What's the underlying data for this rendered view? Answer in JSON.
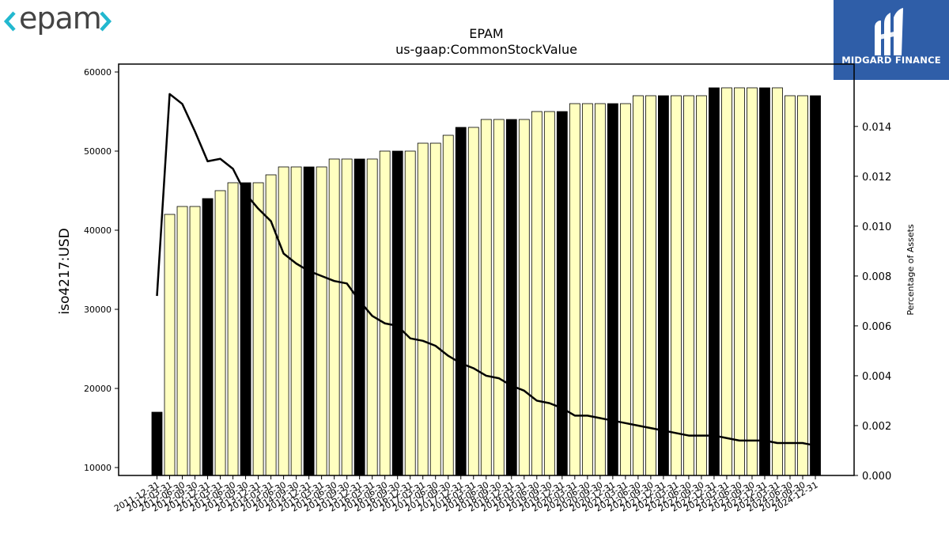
{
  "brand": {
    "name": "epam",
    "sponsor": "MIDGARD FINANCE"
  },
  "chart_data": {
    "type": "bar",
    "title": "EPAM",
    "subtitle": "us-gaap:CommonStockValue",
    "ylabel": "iso4217:USD",
    "y2label": "Percentage of Assets",
    "ylim": [
      9000,
      61000
    ],
    "y2lim": [
      0,
      0.0165
    ],
    "yticks": [
      10000,
      20000,
      30000,
      40000,
      50000,
      60000
    ],
    "y2ticks": [
      0.0,
      0.002,
      0.004,
      0.006,
      0.008,
      0.01,
      0.012,
      0.014
    ],
    "y2tick_labels": [
      "0.000",
      "0.002",
      "0.004",
      "0.006",
      "0.008",
      "0.010",
      "0.012",
      "0.014"
    ],
    "categories": [
      "2011-12-31",
      "2012-03-31",
      "2012-06-30",
      "2012-09-30",
      "2012-12-31",
      "2013-03-31",
      "2013-06-30",
      "2013-09-30",
      "2013-12-31",
      "2014-03-31",
      "2014-06-30",
      "2014-09-30",
      "2014-12-31",
      "2015-03-31",
      "2015-06-30",
      "2015-09-30",
      "2015-12-31",
      "2016-03-31",
      "2016-06-30",
      "2016-09-30",
      "2016-12-31",
      "2017-03-31",
      "2017-06-30",
      "2017-09-30",
      "2017-12-31",
      "2018-03-31",
      "2018-06-30",
      "2018-09-30",
      "2018-12-31",
      "2019-03-31",
      "2019-06-30",
      "2019-09-30",
      "2019-12-31",
      "2020-03-31",
      "2020-06-30",
      "2020-09-30",
      "2020-12-31",
      "2021-03-31",
      "2021-06-30",
      "2021-09-30",
      "2021-12-31",
      "2022-03-31",
      "2022-06-30",
      "2022-09-30",
      "2022-12-31",
      "2023-03-31",
      "2023-06-30",
      "2023-09-30",
      "2023-12-31",
      "2024-03-31",
      "2024-06-30",
      "2024-09-30",
      "2024-12-31"
    ],
    "x_tick_labels": [
      "2011-12-31",
      "2012-03-31",
      "2012-06-30",
      "2012-09-30",
      "2012-12-31",
      "2013-03-31",
      "2013-06-30",
      "2013-09-30",
      "2013-12-31",
      "2014-03-31",
      "2014-06-30",
      "2014-09-30",
      "2014-12-31",
      "2015-03-31",
      "2015-06-30",
      "2015-09-30",
      "2015-12-31",
      "2016-03-31",
      "2016-06-30",
      "2016-09-30",
      "2016-12-31",
      "2017-03-31",
      "2017-06-30",
      "2017-09-30",
      "2017-12-31",
      "2018-03-31",
      "2018-06-30",
      "2018-09-30",
      "2018-12-31",
      "2019-03-31",
      "2019-06-30",
      "2019-09-30",
      "2019-12-31",
      "2020-03-31",
      "2020-06-30",
      "2020-09-30",
      "2020-12-31",
      "2021-03-31",
      "2021-06-30",
      "2021-09-30",
      "2021-12-31",
      "2022-03-31",
      "2022-06-30",
      "2022-09-30",
      "2022-12-31",
      "2023-03-31",
      "2023-06-30",
      "2023-09-30",
      "2023-12-31",
      "2024-03-31",
      "2024-06-30",
      "2024-09-30",
      "2024-12-31"
    ],
    "series": [
      {
        "type": "bar",
        "values": [
          17000,
          42000,
          43000,
          43000,
          44000,
          45000,
          46000,
          46000,
          46000,
          47000,
          48000,
          48000,
          48000,
          48000,
          49000,
          49000,
          49000,
          49000,
          50000,
          50000,
          50000,
          51000,
          51000,
          52000,
          53000,
          53000,
          54000,
          54000,
          54000,
          54000,
          55000,
          55000,
          55000,
          56000,
          56000,
          56000,
          56000,
          56000,
          57000,
          57000,
          57000,
          57000,
          57000,
          57000,
          58000,
          58000,
          58000,
          58000,
          58000,
          58000,
          57000,
          57000,
          57000
        ],
        "highlight": [
          true,
          false,
          false,
          false,
          true,
          false,
          false,
          true,
          false,
          false,
          false,
          false,
          true,
          false,
          false,
          false,
          true,
          false,
          false,
          true,
          false,
          false,
          false,
          false,
          true,
          false,
          false,
          false,
          true,
          false,
          false,
          false,
          true,
          false,
          false,
          false,
          true,
          false,
          false,
          false,
          true,
          false,
          false,
          false,
          true,
          false,
          false,
          false,
          true,
          false,
          false,
          false,
          true
        ]
      },
      {
        "type": "line",
        "axis": "right",
        "values": [
          0.0072,
          0.0153,
          0.0149,
          0.0138,
          0.0126,
          0.0127,
          0.0123,
          0.0113,
          0.0107,
          0.0102,
          0.0089,
          0.0085,
          0.0082,
          0.008,
          0.0078,
          0.0077,
          0.007,
          0.0064,
          0.0061,
          0.006,
          0.0055,
          0.0054,
          0.0052,
          0.0048,
          0.0045,
          0.0043,
          0.004,
          0.0039,
          0.0036,
          0.0034,
          0.003,
          0.0029,
          0.0027,
          0.0024,
          0.0024,
          0.0023,
          0.0022,
          0.0021,
          0.002,
          0.0019,
          0.0018,
          0.0017,
          0.0016,
          0.0016,
          0.0016,
          0.0015,
          0.0014,
          0.0014,
          0.0014,
          0.0013,
          0.0013,
          0.0013,
          0.0012
        ]
      }
    ],
    "colors": {
      "bar": "#ffffc0",
      "bar_highlight": "#000000",
      "bar_edge": "#000000",
      "line": "#000000",
      "midgard_bg": "#2f5ea8",
      "epam_text": "#444444",
      "epam_accent": "#22b8cf"
    },
    "grid": false
  }
}
